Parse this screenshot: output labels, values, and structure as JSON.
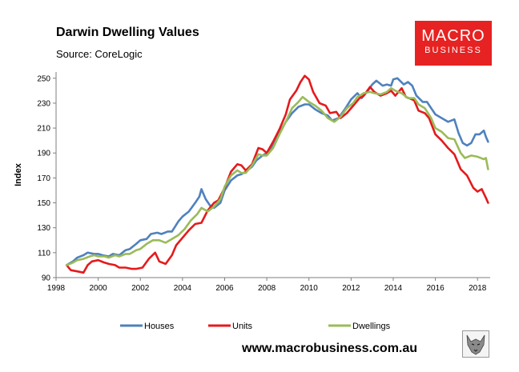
{
  "header": {
    "title": "Darwin Dwelling Values",
    "source": "Source: CoreLogic"
  },
  "logo": {
    "line1": "MACRO",
    "line2": "BUSINESS",
    "color": "#e62222"
  },
  "footer": {
    "website": "www.macrobusiness.com.au"
  },
  "chart_data": {
    "type": "line",
    "title": "Darwin Dwelling Values",
    "xlabel": "",
    "ylabel": "Index",
    "xlim": [
      1998,
      2018.6
    ],
    "ylim": [
      90,
      255
    ],
    "xticks": [
      1998,
      2000,
      2002,
      2004,
      2006,
      2008,
      2010,
      2012,
      2014,
      2016,
      2018
    ],
    "yticks": [
      90,
      110,
      130,
      150,
      170,
      190,
      210,
      230,
      250
    ],
    "legend_position": "bottom",
    "series": [
      {
        "name": "Houses",
        "color": "#4f81bd",
        "points": [
          [
            1998.5,
            100
          ],
          [
            1998.8,
            103
          ],
          [
            1999.0,
            106
          ],
          [
            1999.3,
            108
          ],
          [
            1999.5,
            110
          ],
          [
            1999.8,
            109
          ],
          [
            2000.0,
            109
          ],
          [
            2000.2,
            108
          ],
          [
            2000.5,
            107
          ],
          [
            2000.7,
            109
          ],
          [
            2001.0,
            108
          ],
          [
            2001.3,
            112
          ],
          [
            2001.5,
            113
          ],
          [
            2001.8,
            117
          ],
          [
            2002.0,
            120
          ],
          [
            2002.3,
            121
          ],
          [
            2002.5,
            125
          ],
          [
            2002.8,
            126
          ],
          [
            2003.0,
            125
          ],
          [
            2003.3,
            127
          ],
          [
            2003.5,
            127
          ],
          [
            2003.8,
            135
          ],
          [
            2004.0,
            139
          ],
          [
            2004.3,
            143
          ],
          [
            2004.6,
            150
          ],
          [
            2004.8,
            155
          ],
          [
            2004.9,
            161
          ],
          [
            2005.1,
            153
          ],
          [
            2005.3,
            148
          ],
          [
            2005.5,
            146
          ],
          [
            2005.8,
            150
          ],
          [
            2006.0,
            160
          ],
          [
            2006.3,
            168
          ],
          [
            2006.6,
            172
          ],
          [
            2006.8,
            173
          ],
          [
            2007.0,
            175
          ],
          [
            2007.3,
            179
          ],
          [
            2007.5,
            184
          ],
          [
            2007.8,
            188
          ],
          [
            2008.0,
            190
          ],
          [
            2008.3,
            196
          ],
          [
            2008.6,
            206
          ],
          [
            2008.9,
            215
          ],
          [
            2009.2,
            222
          ],
          [
            2009.5,
            227
          ],
          [
            2009.8,
            229
          ],
          [
            2010.0,
            229
          ],
          [
            2010.3,
            225
          ],
          [
            2010.6,
            222
          ],
          [
            2010.9,
            220
          ],
          [
            2011.1,
            216
          ],
          [
            2011.4,
            218
          ],
          [
            2011.7,
            225
          ],
          [
            2012.0,
            233
          ],
          [
            2012.3,
            238
          ],
          [
            2012.5,
            234
          ],
          [
            2012.8,
            240
          ],
          [
            2013.0,
            245
          ],
          [
            2013.2,
            248
          ],
          [
            2013.5,
            244
          ],
          [
            2013.7,
            245
          ],
          [
            2013.9,
            244
          ],
          [
            2014.0,
            249
          ],
          [
            2014.2,
            250
          ],
          [
            2014.5,
            245
          ],
          [
            2014.7,
            247
          ],
          [
            2014.9,
            244
          ],
          [
            2015.1,
            236
          ],
          [
            2015.4,
            231
          ],
          [
            2015.6,
            231
          ],
          [
            2015.8,
            226
          ],
          [
            2016.0,
            221
          ],
          [
            2016.3,
            218
          ],
          [
            2016.6,
            215
          ],
          [
            2016.9,
            217
          ],
          [
            2017.1,
            206
          ],
          [
            2017.3,
            198
          ],
          [
            2017.5,
            196
          ],
          [
            2017.7,
            198
          ],
          [
            2017.9,
            205
          ],
          [
            2018.1,
            205
          ],
          [
            2018.3,
            208
          ],
          [
            2018.4,
            203
          ],
          [
            2018.5,
            199
          ]
        ]
      },
      {
        "name": "Units",
        "color": "#e41a1c",
        "points": [
          [
            1998.5,
            100
          ],
          [
            1998.7,
            96
          ],
          [
            1999.0,
            95
          ],
          [
            1999.3,
            94
          ],
          [
            1999.5,
            100
          ],
          [
            1999.7,
            103
          ],
          [
            2000.0,
            104
          ],
          [
            2000.3,
            102
          ],
          [
            2000.5,
            101
          ],
          [
            2000.8,
            100
          ],
          [
            2001.0,
            98
          ],
          [
            2001.3,
            98
          ],
          [
            2001.6,
            97
          ],
          [
            2001.8,
            97
          ],
          [
            2002.1,
            98
          ],
          [
            2002.4,
            105
          ],
          [
            2002.7,
            110
          ],
          [
            2002.9,
            103
          ],
          [
            2003.2,
            101
          ],
          [
            2003.5,
            108
          ],
          [
            2003.7,
            116
          ],
          [
            2004.0,
            122
          ],
          [
            2004.3,
            128
          ],
          [
            2004.6,
            133
          ],
          [
            2004.9,
            134
          ],
          [
            2005.2,
            144
          ],
          [
            2005.5,
            150
          ],
          [
            2005.7,
            152
          ],
          [
            2006.0,
            162
          ],
          [
            2006.3,
            175
          ],
          [
            2006.6,
            181
          ],
          [
            2006.8,
            180
          ],
          [
            2007.0,
            176
          ],
          [
            2007.3,
            181
          ],
          [
            2007.6,
            194
          ],
          [
            2007.8,
            193
          ],
          [
            2008.0,
            190
          ],
          [
            2008.3,
            199
          ],
          [
            2008.6,
            209
          ],
          [
            2008.9,
            221
          ],
          [
            2009.1,
            233
          ],
          [
            2009.4,
            240
          ],
          [
            2009.6,
            247
          ],
          [
            2009.8,
            252
          ],
          [
            2010.0,
            249
          ],
          [
            2010.2,
            239
          ],
          [
            2010.5,
            230
          ],
          [
            2010.8,
            228
          ],
          [
            2011.0,
            222
          ],
          [
            2011.3,
            223
          ],
          [
            2011.5,
            218
          ],
          [
            2011.8,
            222
          ],
          [
            2012.1,
            228
          ],
          [
            2012.4,
            234
          ],
          [
            2012.6,
            236
          ],
          [
            2012.9,
            243
          ],
          [
            2013.1,
            239
          ],
          [
            2013.4,
            236
          ],
          [
            2013.7,
            238
          ],
          [
            2013.9,
            240
          ],
          [
            2014.1,
            236
          ],
          [
            2014.4,
            242
          ],
          [
            2014.6,
            235
          ],
          [
            2014.9,
            233
          ],
          [
            2015.0,
            232
          ],
          [
            2015.2,
            224
          ],
          [
            2015.5,
            222
          ],
          [
            2015.7,
            218
          ],
          [
            2016.0,
            205
          ],
          [
            2016.3,
            200
          ],
          [
            2016.6,
            194
          ],
          [
            2016.9,
            189
          ],
          [
            2017.2,
            177
          ],
          [
            2017.5,
            172
          ],
          [
            2017.8,
            162
          ],
          [
            2018.0,
            159
          ],
          [
            2018.2,
            161
          ],
          [
            2018.4,
            154
          ],
          [
            2018.5,
            150
          ]
        ]
      },
      {
        "name": "Dwellings",
        "color": "#9bbb59",
        "points": [
          [
            1998.5,
            100
          ],
          [
            1998.8,
            102
          ],
          [
            1999.0,
            104
          ],
          [
            1999.3,
            105
          ],
          [
            1999.6,
            107
          ],
          [
            1999.8,
            108
          ],
          [
            2000.0,
            107
          ],
          [
            2000.3,
            107
          ],
          [
            2000.5,
            106
          ],
          [
            2000.8,
            108
          ],
          [
            2001.0,
            107
          ],
          [
            2001.3,
            109
          ],
          [
            2001.5,
            109
          ],
          [
            2001.8,
            112
          ],
          [
            2002.0,
            113
          ],
          [
            2002.3,
            117
          ],
          [
            2002.6,
            120
          ],
          [
            2002.9,
            120
          ],
          [
            2003.2,
            118
          ],
          [
            2003.5,
            121
          ],
          [
            2003.8,
            124
          ],
          [
            2004.1,
            129
          ],
          [
            2004.4,
            136
          ],
          [
            2004.7,
            141
          ],
          [
            2004.9,
            146
          ],
          [
            2005.2,
            143
          ],
          [
            2005.5,
            147
          ],
          [
            2005.8,
            153
          ],
          [
            2006.0,
            163
          ],
          [
            2006.3,
            172
          ],
          [
            2006.6,
            176
          ],
          [
            2006.8,
            174
          ],
          [
            2007.0,
            174
          ],
          [
            2007.3,
            180
          ],
          [
            2007.6,
            189
          ],
          [
            2007.8,
            188
          ],
          [
            2008.0,
            188
          ],
          [
            2008.3,
            194
          ],
          [
            2008.6,
            205
          ],
          [
            2008.9,
            215
          ],
          [
            2009.2,
            226
          ],
          [
            2009.5,
            231
          ],
          [
            2009.7,
            235
          ],
          [
            2010.0,
            231
          ],
          [
            2010.3,
            228
          ],
          [
            2010.6,
            224
          ],
          [
            2010.9,
            218
          ],
          [
            2011.2,
            215
          ],
          [
            2011.5,
            219
          ],
          [
            2011.8,
            226
          ],
          [
            2012.1,
            230
          ],
          [
            2012.3,
            235
          ],
          [
            2012.6,
            238
          ],
          [
            2012.9,
            239
          ],
          [
            2013.1,
            238
          ],
          [
            2013.4,
            237
          ],
          [
            2013.7,
            239
          ],
          [
            2013.9,
            242
          ],
          [
            2014.1,
            240
          ],
          [
            2014.4,
            238
          ],
          [
            2014.7,
            234
          ],
          [
            2015.0,
            234
          ],
          [
            2015.2,
            229
          ],
          [
            2015.5,
            226
          ],
          [
            2015.8,
            218
          ],
          [
            2016.0,
            210
          ],
          [
            2016.3,
            207
          ],
          [
            2016.6,
            202
          ],
          [
            2016.9,
            201
          ],
          [
            2017.2,
            190
          ],
          [
            2017.4,
            186
          ],
          [
            2017.7,
            188
          ],
          [
            2018.0,
            187
          ],
          [
            2018.3,
            185
          ],
          [
            2018.4,
            186
          ],
          [
            2018.5,
            177
          ]
        ]
      }
    ]
  }
}
